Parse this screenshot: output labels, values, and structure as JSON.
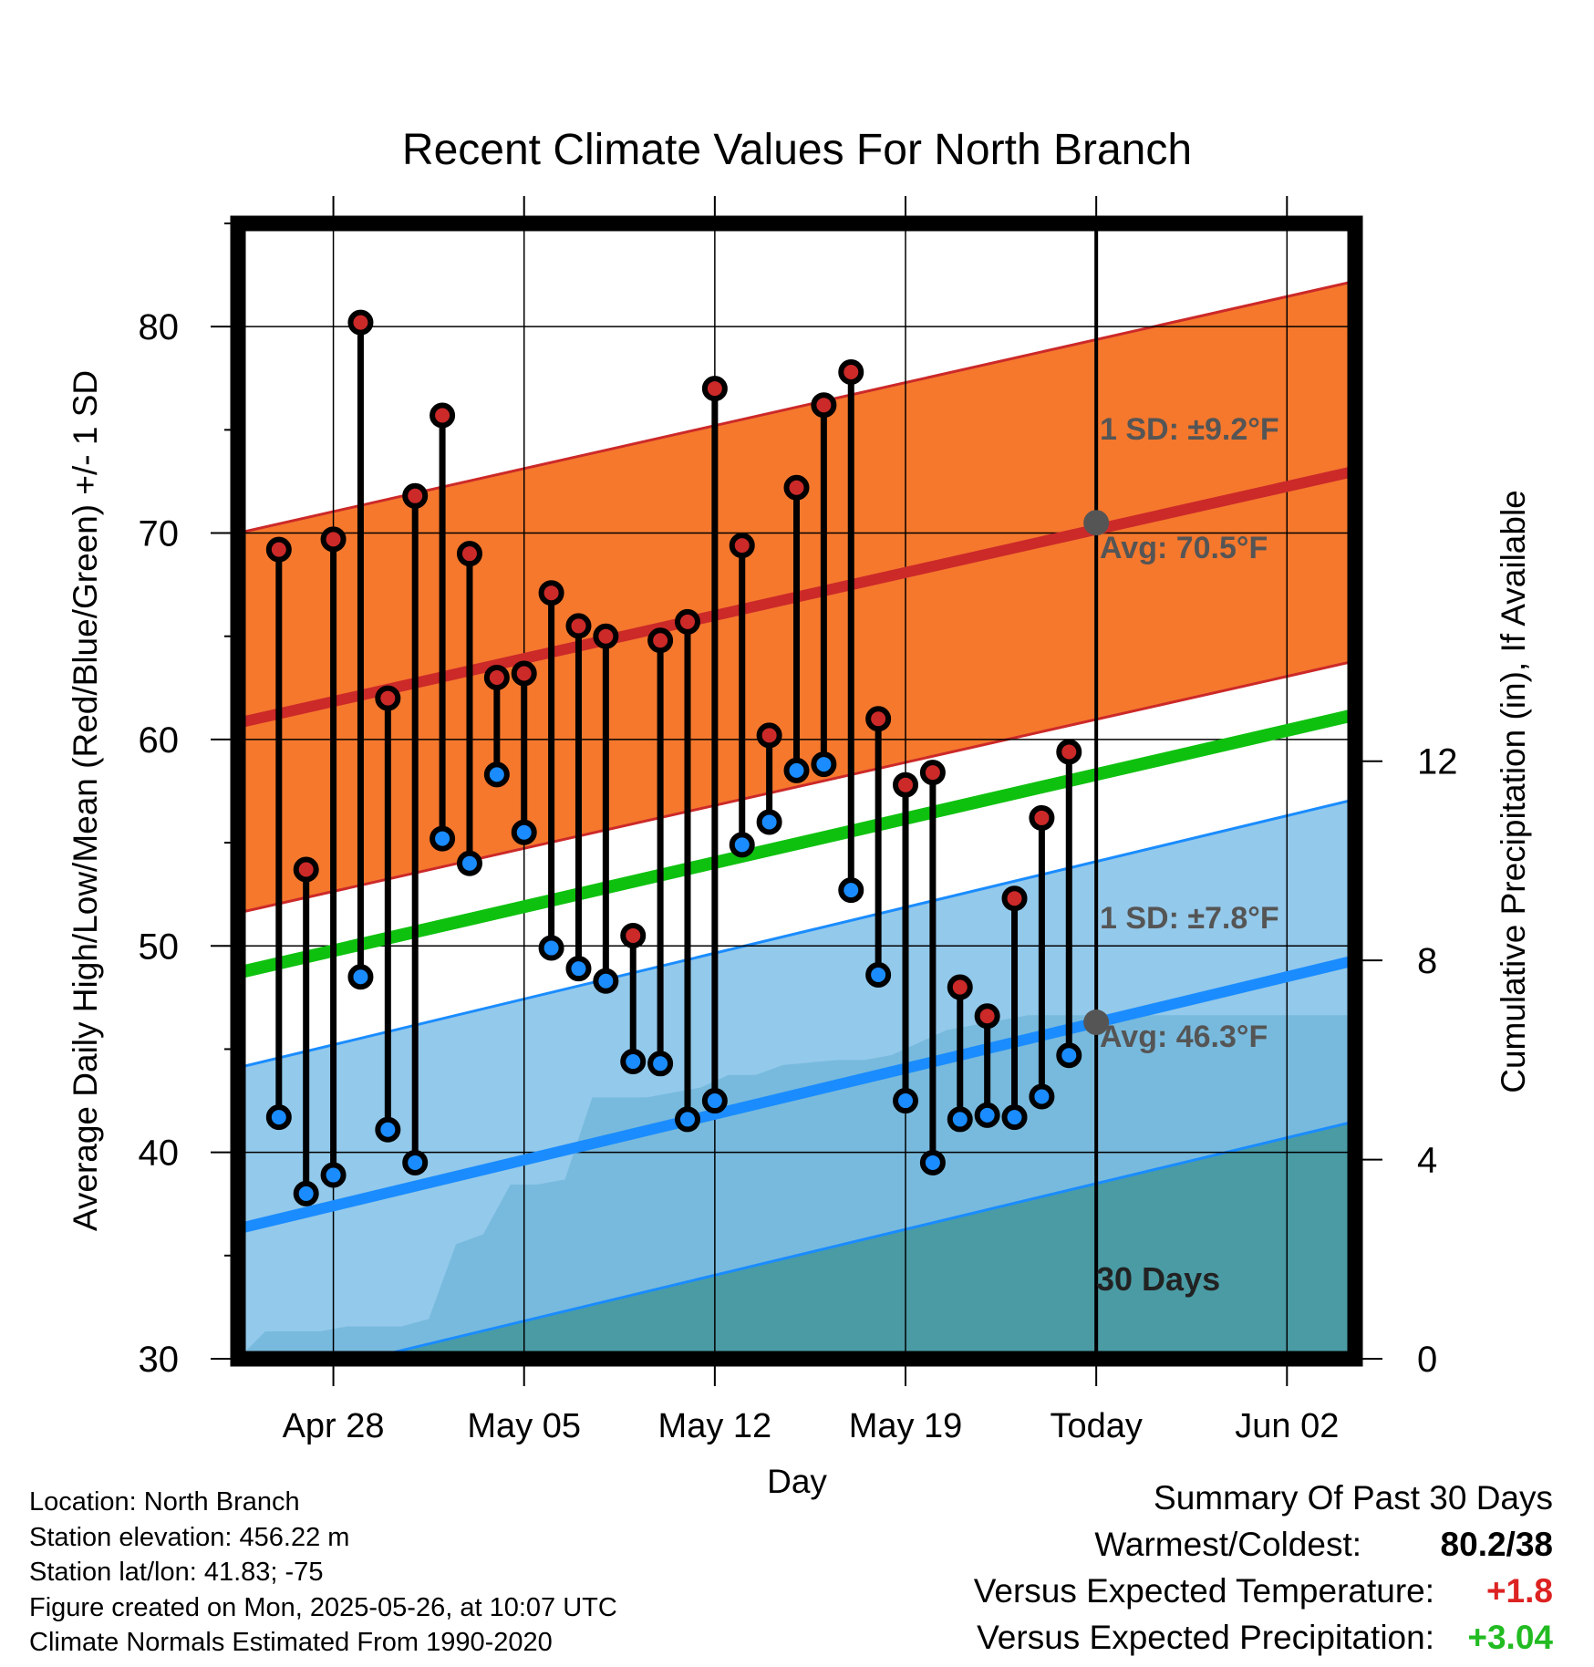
{
  "chart_data": {
    "type": "line",
    "title": "Recent Climate Values For North Branch",
    "xlabel": "Day",
    "ylabel": "Average Daily High/Low/Mean (Red/Blue/Green) +/- 1 SD",
    "y2label": "Cumulative Precipitation (in), If Available",
    "ylim": [
      30,
      85
    ],
    "y2lim": [
      0,
      22.8
    ],
    "x_tick_labels": [
      "Apr 28",
      "May 05",
      "May 12",
      "May 19",
      "Today",
      "Jun 02"
    ],
    "y_tick_labels": [
      "30",
      "40",
      "50",
      "60",
      "70",
      "80"
    ],
    "y2_tick_labels": [
      "0",
      "4",
      "8",
      "12"
    ],
    "x_range_days": [
      -31.5,
      9.5
    ],
    "today_line_label": "30 Days",
    "daily_observations": {
      "day_offset": [
        -30,
        -29,
        -28,
        -27,
        -26,
        -25,
        -24,
        -23,
        -22,
        -21,
        -20,
        -19,
        -18,
        -17,
        -16,
        -15,
        -14,
        -13,
        -12,
        -11,
        -10,
        -9,
        -8,
        -7,
        -6,
        -5,
        -4,
        -3,
        -2,
        -1
      ],
      "high": [
        69.2,
        53.7,
        69.7,
        80.2,
        62.0,
        71.8,
        75.7,
        69.0,
        63.0,
        63.2,
        67.1,
        65.5,
        65.0,
        50.5,
        64.8,
        65.7,
        77.0,
        69.4,
        60.2,
        72.2,
        76.2,
        77.8,
        61.0,
        57.8,
        58.4,
        48.0,
        46.6,
        52.3,
        56.2,
        59.4
      ],
      "low": [
        41.7,
        38.0,
        38.9,
        48.5,
        41.1,
        39.5,
        55.2,
        54.0,
        58.3,
        55.5,
        49.9,
        48.9,
        48.3,
        44.4,
        44.3,
        41.6,
        42.5,
        54.9,
        56.0,
        58.5,
        58.8,
        52.7,
        48.6,
        42.5,
        39.5,
        41.6,
        41.8,
        41.7,
        42.7,
        44.7
      ]
    },
    "normal_high": {
      "name": "Avg: 70.5°F",
      "sd_label": "1 SD: ±9.2°F",
      "day_offset": [
        -31.5,
        9.5
      ],
      "mean": [
        60.8,
        73.0
      ],
      "sd": 9.2,
      "color": "#cc2929",
      "band_color": "#f5782d"
    },
    "normal_low": {
      "name": "Avg: 46.3°F",
      "sd_label": "1 SD: ±7.8°F",
      "day_offset": [
        -31.5,
        9.5
      ],
      "mean": [
        36.3,
        49.3
      ],
      "sd": 7.8,
      "color": "#1a8cff",
      "band_color": "#80c0e8"
    },
    "normal_mean": {
      "day_offset": [
        -31.5,
        9.5
      ],
      "mean": [
        48.7,
        61.2
      ],
      "color": "#0fc10f"
    },
    "cumulative_precipitation": {
      "day_offset": [
        -31.5,
        -30.5,
        -29.5,
        -28.5,
        -27.5,
        -26.5,
        -25.5,
        -24.5,
        -23.5,
        -22.5,
        -21.5,
        -20.5,
        -19.5,
        -18.5,
        -17.5,
        -16.5,
        -15.5,
        -14.5,
        -13.5,
        -12.5,
        -11.5,
        -10.5,
        -9.5,
        -8.5,
        -7.5,
        -6.5,
        -5.5,
        -4.5,
        -3.5,
        -2.5,
        -1.5,
        -0.5,
        0,
        9.5
      ],
      "values": [
        0.0,
        0.55,
        0.55,
        0.55,
        0.65,
        0.65,
        0.65,
        0.8,
        2.3,
        2.5,
        3.5,
        3.5,
        3.6,
        5.25,
        5.25,
        5.25,
        5.35,
        5.45,
        5.7,
        5.7,
        5.9,
        5.95,
        6.0,
        6.0,
        6.1,
        6.35,
        6.6,
        6.7,
        6.8,
        6.9,
        6.9,
        6.9,
        6.9,
        6.9
      ],
      "color": "#4a9ba4"
    },
    "today_markers": {
      "normal_high": 70.5,
      "normal_low": 46.3
    },
    "colors": {
      "high_dot": "#cc2929",
      "low_dot": "#1a8cff",
      "stem": "#000000",
      "frame": "#000000",
      "annotation": "#555555"
    }
  },
  "footer": {
    "location": "Location: North Branch",
    "elevation": "Station elevation: 456.22 m",
    "latlon": "Station lat/lon: 41.83; -75",
    "created": "Figure created on Mon, 2025-05-26, at 10:07 UTC",
    "normals": "Climate Normals Estimated From 1990-2020"
  },
  "summary": {
    "title": "Summary Of Past 30 Days",
    "warmest_label": "Warmest/Coldest:",
    "warmest_value": "80.2/38",
    "temp_label": "Versus Expected Temperature:",
    "temp_value": "+1.8",
    "temp_color": "#dd2222",
    "precip_label": "Versus Expected Precipitation:",
    "precip_value": "+3.04",
    "precip_color": "#22bb22"
  }
}
